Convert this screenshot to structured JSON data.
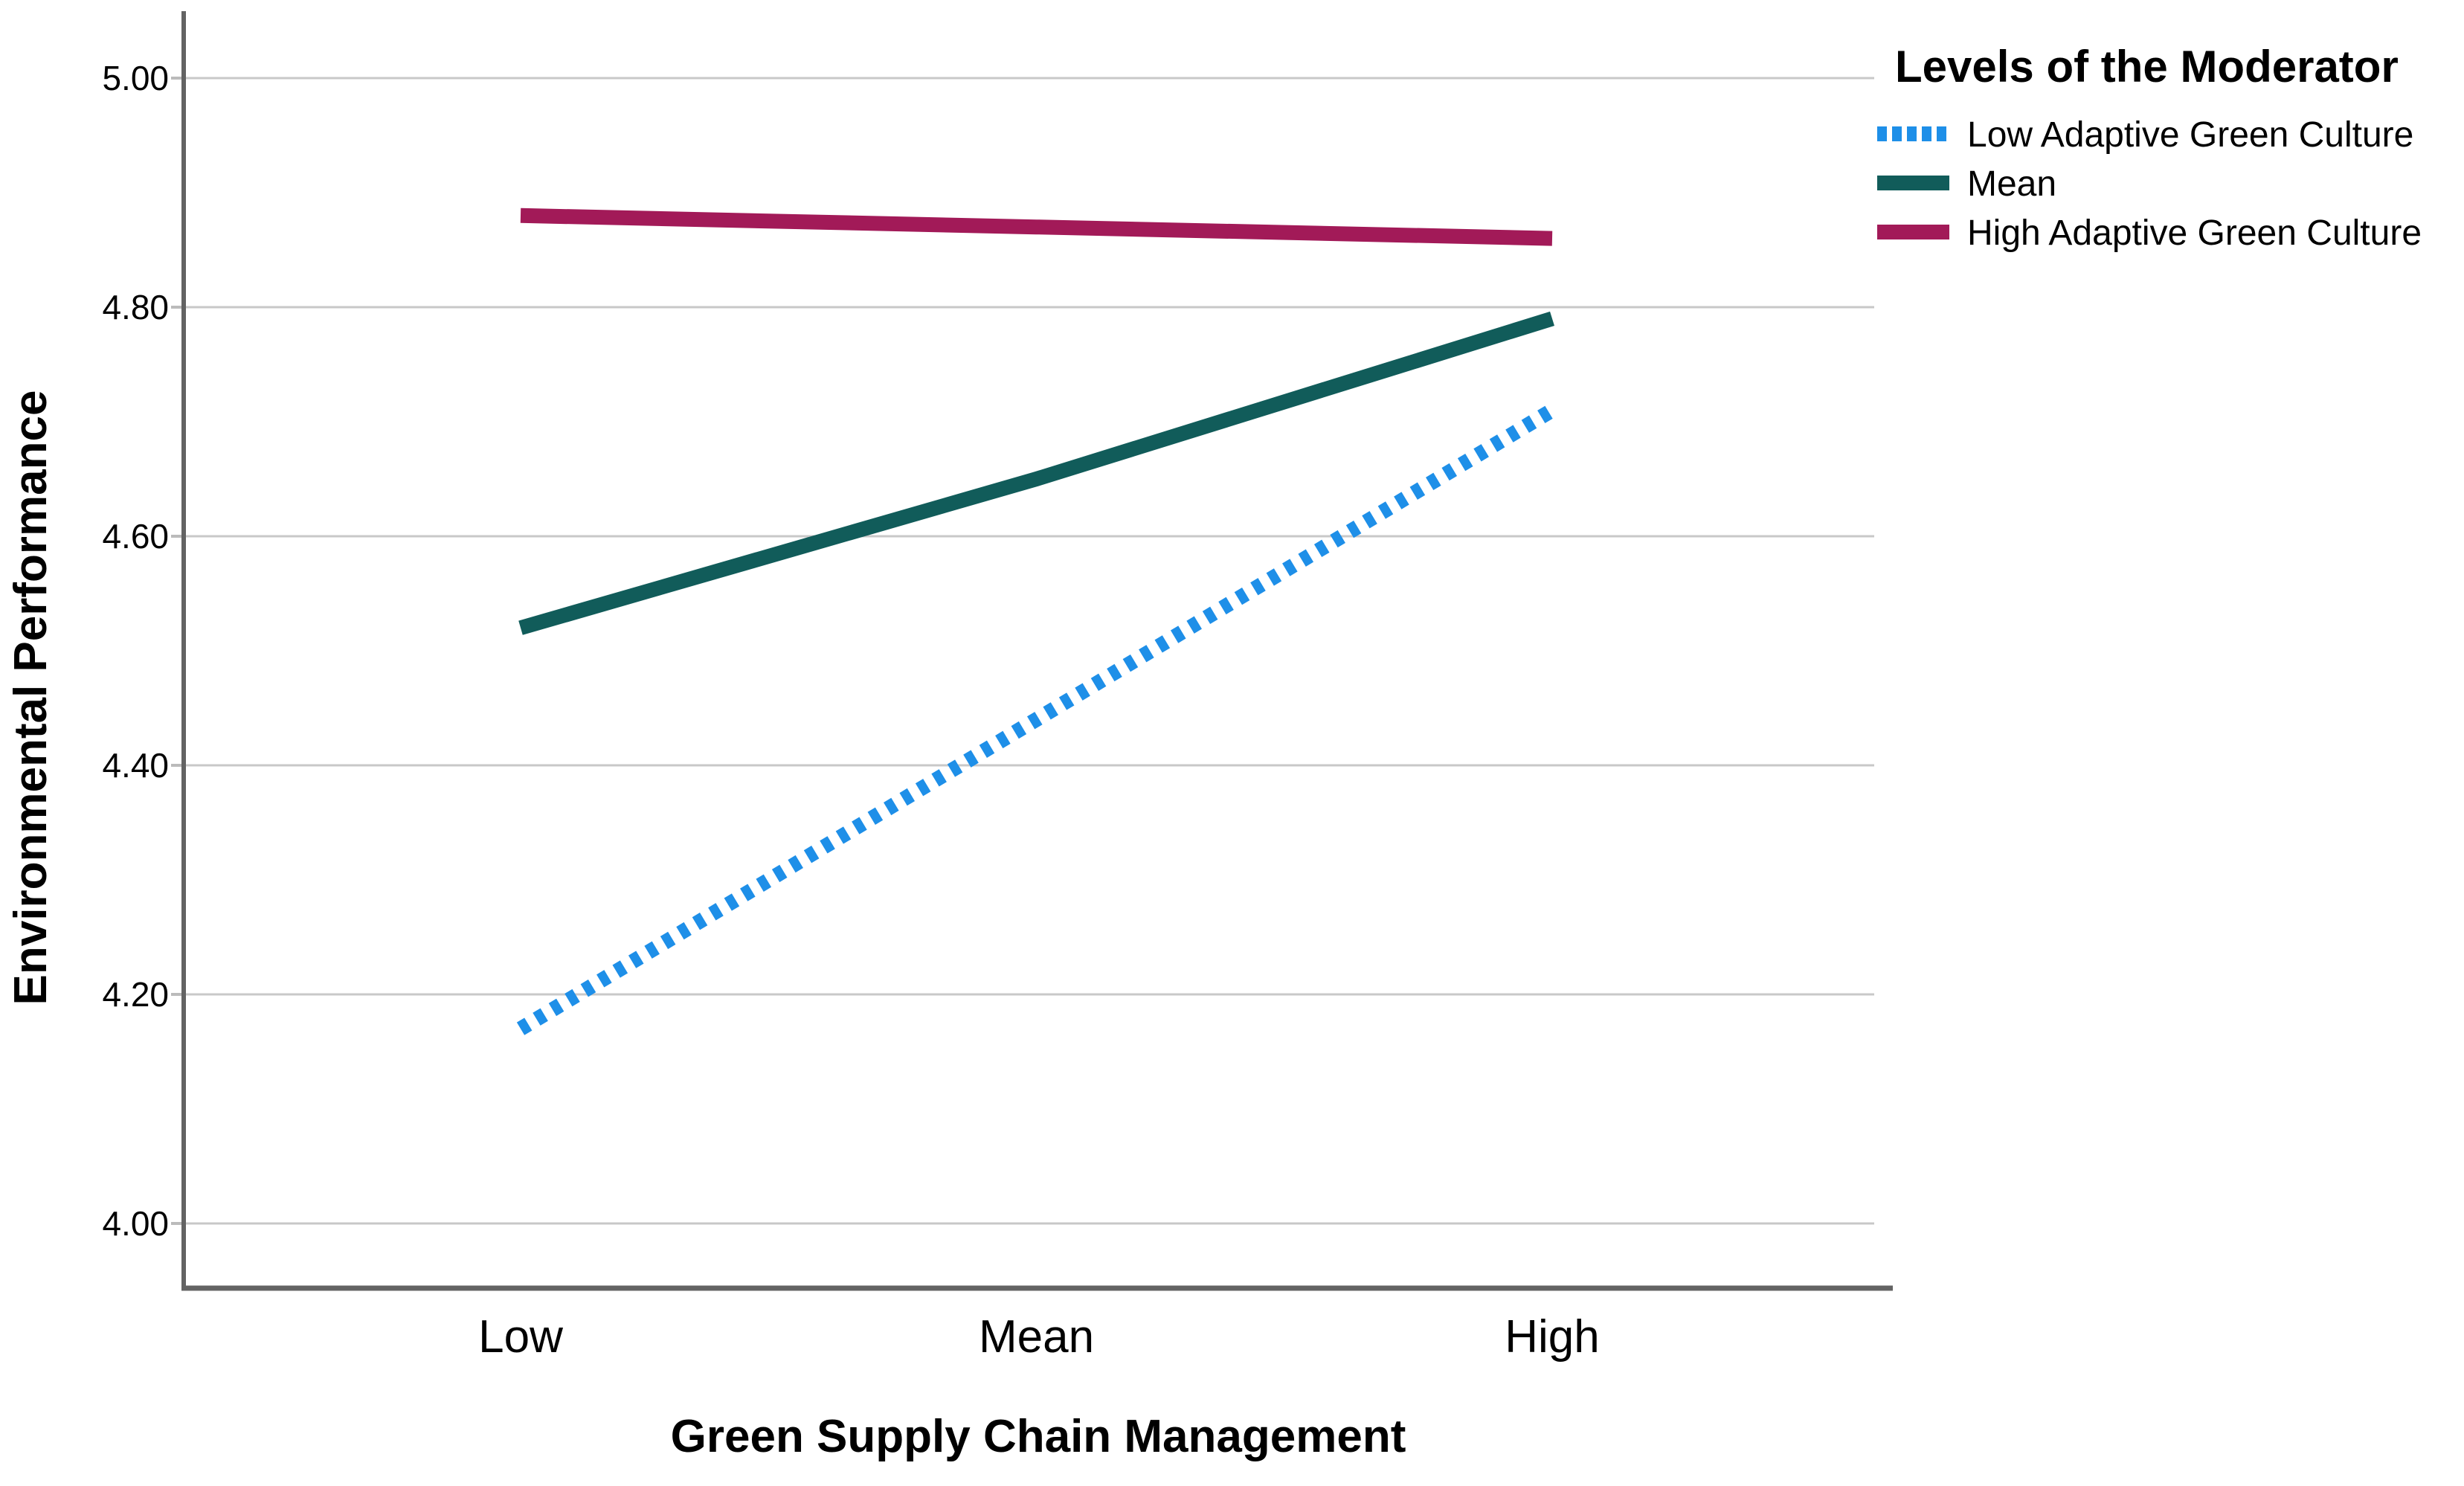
{
  "chart_data": {
    "type": "line",
    "categories": [
      "Low",
      "Mean",
      "High"
    ],
    "xlabel": "Green Supply Chain Management",
    "ylabel": "Environmental Performance",
    "yticks": [
      {
        "label": "5.00",
        "value": 5.0
      },
      {
        "label": "4.80",
        "value": 4.8
      },
      {
        "label": "4.60",
        "value": 4.6
      },
      {
        "label": "4.40",
        "value": 4.4
      },
      {
        "label": "4.20",
        "value": 4.2
      },
      {
        "label": "4.00",
        "value": 4.0
      }
    ],
    "ylim": [
      3.94,
      5.05
    ],
    "grid": "horizontal",
    "legend": {
      "title": "Levels of the Moderator",
      "position": "top-right"
    },
    "series": [
      {
        "name": "Low Adaptive Green Culture",
        "values": [
          4.17,
          4.44,
          4.71
        ],
        "color": "#1E8FE8",
        "style": "dotted"
      },
      {
        "name": "Mean",
        "values": [
          4.52,
          4.65,
          4.79
        ],
        "color": "#115C5A",
        "style": "solid"
      },
      {
        "name": "High Adaptive Green Culture",
        "values": [
          4.88,
          4.87,
          4.86
        ],
        "color": "#A21A58",
        "style": "solid"
      }
    ],
    "colors": {
      "gridline": "#C8C8C8",
      "axis_line": "#636363",
      "tick_mark": "#BBBBBB",
      "text": "#000000"
    }
  }
}
